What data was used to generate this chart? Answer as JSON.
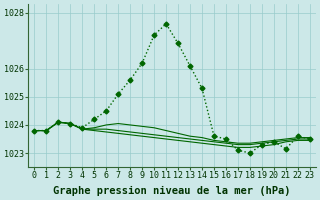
{
  "title": "Graphe pression niveau de la mer (hPa)",
  "bg_color": "#cce8e8",
  "grid_color": "#99cccc",
  "line_color": "#006600",
  "ylim": [
    1022.5,
    1028.3
  ],
  "xlim": [
    -0.5,
    23.5
  ],
  "ytick_vals": [
    1023,
    1024,
    1025,
    1026,
    1028
  ],
  "ytick_labels": [
    "1023",
    "1024",
    "1025",
    "1026",
    "1028"
  ],
  "xticks": [
    0,
    1,
    2,
    3,
    4,
    5,
    6,
    7,
    8,
    9,
    10,
    11,
    12,
    13,
    14,
    15,
    16,
    17,
    18,
    19,
    20,
    21,
    22,
    23
  ],
  "series": [
    [
      1023.8,
      1023.8,
      1024.1,
      1024.05,
      1023.9,
      1024.2,
      1024.5,
      1025.1,
      1025.6,
      1026.2,
      1027.2,
      1027.6,
      1026.9,
      1026.1,
      1025.3,
      1023.6,
      1023.5,
      1023.1,
      1023.0,
      1023.3,
      1023.4,
      1023.15,
      1023.6,
      1023.5
    ],
    [
      1023.8,
      1023.8,
      1024.1,
      1024.05,
      1023.85,
      1023.9,
      1024.0,
      1024.05,
      1024.0,
      1023.95,
      1023.9,
      1023.8,
      1023.7,
      1023.6,
      1023.55,
      1023.45,
      1023.4,
      1023.35,
      1023.35,
      1023.4,
      1023.45,
      1023.5,
      1023.55,
      1023.55
    ],
    [
      1023.8,
      1023.8,
      1024.1,
      1024.05,
      1023.85,
      1023.85,
      1023.85,
      1023.8,
      1023.75,
      1023.7,
      1023.65,
      1023.6,
      1023.55,
      1023.5,
      1023.45,
      1023.4,
      1023.35,
      1023.3,
      1023.3,
      1023.35,
      1023.4,
      1023.45,
      1023.5,
      1023.5
    ],
    [
      1023.8,
      1023.8,
      1024.1,
      1024.05,
      1023.85,
      1023.8,
      1023.75,
      1023.7,
      1023.65,
      1023.6,
      1023.55,
      1023.5,
      1023.45,
      1023.4,
      1023.35,
      1023.3,
      1023.25,
      1023.2,
      1023.2,
      1023.25,
      1023.3,
      1023.4,
      1023.45,
      1023.45
    ]
  ],
  "main_series_idx": 0,
  "marker": "D",
  "markersize": 2.5,
  "linewidth_main": 1.0,
  "linewidth_other": 0.8,
  "title_fontsize": 7.5,
  "tick_fontsize": 6.0
}
